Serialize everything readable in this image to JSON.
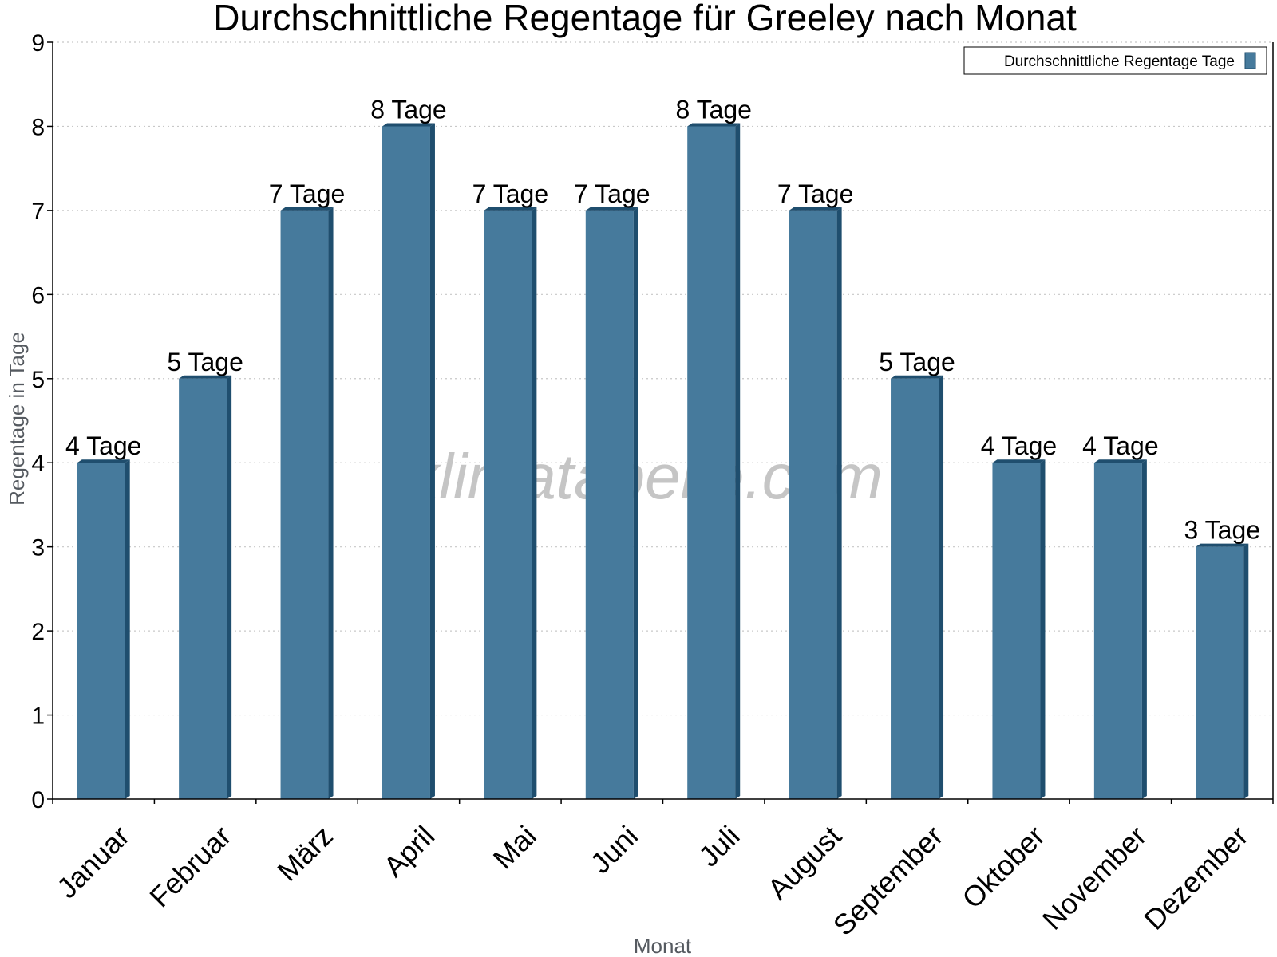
{
  "chart_data": {
    "type": "bar",
    "title": "Durchschnittliche Regentage für Greeley nach Monat",
    "xlabel": "Monat",
    "ylabel": "Regentage in Tage",
    "ylim": [
      0,
      9
    ],
    "yticks": [
      0,
      1,
      2,
      3,
      4,
      5,
      6,
      7,
      8,
      9
    ],
    "grid": "horizontal-dotted",
    "legend_position": "top-right",
    "categories": [
      "Januar",
      "Februar",
      "März",
      "April",
      "Mai",
      "Juni",
      "Juli",
      "August",
      "September",
      "Oktober",
      "November",
      "Dezember"
    ],
    "series": [
      {
        "name": "Durchschnittliche Regentage Tage",
        "color": "#467a9c",
        "values": [
          4,
          5,
          7,
          8,
          7,
          7,
          8,
          7,
          5,
          4,
          4,
          3
        ],
        "labels": [
          "4 Tage",
          "5 Tage",
          "7 Tage",
          "8 Tage",
          "7 Tage",
          "7 Tage",
          "8 Tage",
          "7 Tage",
          "5 Tage",
          "4 Tage",
          "4 Tage",
          "3 Tage"
        ]
      }
    ],
    "side_color": "#1f4e6e",
    "watermark": "klimatabelle.com"
  }
}
